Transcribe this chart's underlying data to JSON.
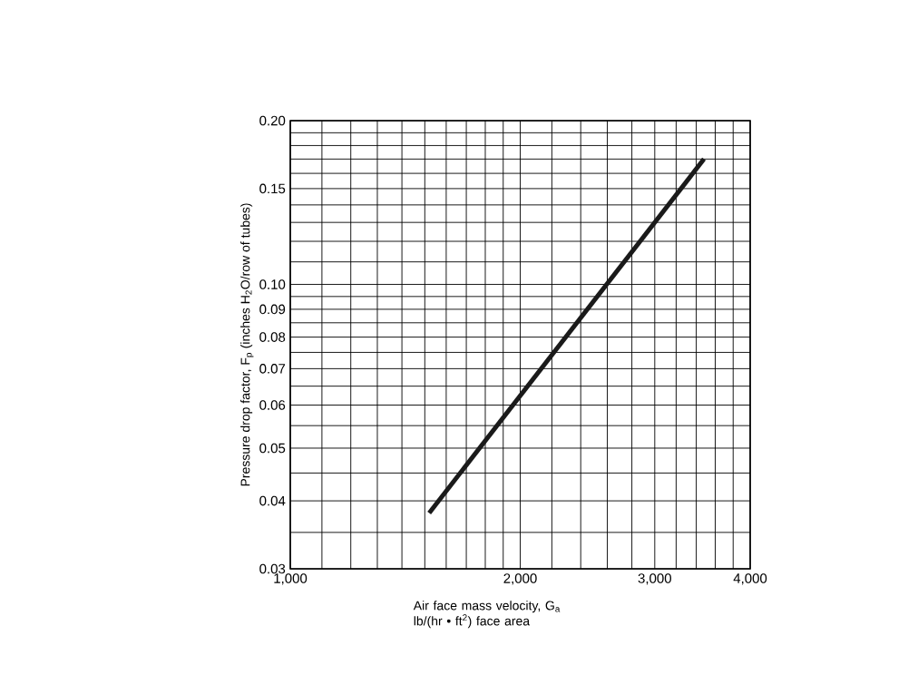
{
  "chart_data": {
    "type": "line",
    "xlabel": "Air face mass velocity, G$_{a}$ lb/(hr • ft$^{2}$) face area",
    "ylabel": "Pressure drop factor, F$_{p}$ (inches H$_{2}$O/row of tubes)",
    "log": "xy",
    "grid": true,
    "xlim": [
      1000,
      4000
    ],
    "ylim": [
      0.03,
      0.2
    ],
    "xticks": [
      {
        "value": 1000,
        "label": "1,000"
      },
      {
        "value": 1100,
        "label": null
      },
      {
        "value": 1200,
        "label": null
      },
      {
        "value": 1300,
        "label": null
      },
      {
        "value": 1400,
        "label": null
      },
      {
        "value": 1500,
        "label": null
      },
      {
        "value": 1600,
        "label": null
      },
      {
        "value": 1700,
        "label": null
      },
      {
        "value": 1800,
        "label": null
      },
      {
        "value": 1900,
        "label": null
      },
      {
        "value": 2000,
        "label": "2,000"
      },
      {
        "value": 2200,
        "label": null
      },
      {
        "value": 2400,
        "label": null
      },
      {
        "value": 2600,
        "label": null
      },
      {
        "value": 2800,
        "label": null
      },
      {
        "value": 3000,
        "label": "3,000"
      },
      {
        "value": 3200,
        "label": null
      },
      {
        "value": 3400,
        "label": null
      },
      {
        "value": 3600,
        "label": null
      },
      {
        "value": 3800,
        "label": null
      },
      {
        "value": 4000,
        "label": "4,000"
      }
    ],
    "yticks": [
      0.03,
      {
        "value": 0.035,
        "label": null
      },
      0.04,
      {
        "value": 0.045,
        "label": null
      },
      0.05,
      {
        "value": 0.055,
        "label": null
      },
      0.06,
      {
        "value": 0.065,
        "label": null
      },
      0.07,
      {
        "value": 0.075,
        "label": null
      },
      0.08,
      {
        "value": 0.085,
        "label": null
      },
      0.09,
      {
        "value": 0.095,
        "label": null
      },
      {
        "value": 0.1,
        "label": "0.10"
      },
      {
        "value": 0.11,
        "label": null
      },
      {
        "value": 0.12,
        "label": null
      },
      {
        "value": 0.13,
        "label": null
      },
      {
        "value": 0.14,
        "label": null
      },
      0.15,
      {
        "value": 0.16,
        "label": null
      },
      {
        "value": 0.17,
        "label": null
      },
      {
        "value": 0.18,
        "label": null
      },
      {
        "value": 0.19,
        "label": null
      },
      {
        "value": 0.2,
        "label": "0.20"
      }
    ],
    "series": [
      {
        "color": "#1a1a1a",
        "x": [
          1520,
          3480
        ],
        "values": [
          0.038,
          0.17
        ]
      }
    ]
  }
}
